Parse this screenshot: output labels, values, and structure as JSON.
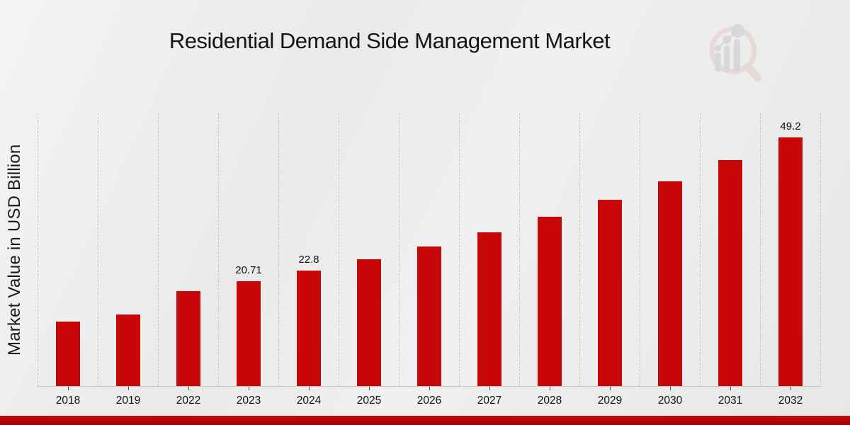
{
  "page": {
    "title": "Residential Demand Side Management Market",
    "background_color": "#ebebeb",
    "footer_bar_color": "#b30505"
  },
  "logo": {
    "name": "market-research-magnifier-watermark",
    "ring_color": "#e6caca",
    "element_color": "#c7c7cb"
  },
  "chart_data": {
    "type": "bar",
    "title": "Residential Demand Side Management Market",
    "xlabel": "",
    "ylabel": "Market Value in USD Billion",
    "bar_color": "#c80808",
    "grid": "vertical dashed column separators only",
    "legend_position": "none",
    "y_axis_ticks": "none (unlabeled axis)",
    "ylim": [
      0,
      54
    ],
    "categories": [
      "2018",
      "2019",
      "2022",
      "2023",
      "2024",
      "2025",
      "2026",
      "2027",
      "2028",
      "2029",
      "2030",
      "2031",
      "2032"
    ],
    "values": [
      12.7,
      14.1,
      18.8,
      20.71,
      22.8,
      25.1,
      27.6,
      30.4,
      33.5,
      36.9,
      40.6,
      44.7,
      49.2
    ],
    "data_labels": [
      "",
      "",
      "",
      "20.71",
      "22.8",
      "",
      "",
      "",
      "",
      "",
      "",
      "",
      "49.2"
    ]
  }
}
